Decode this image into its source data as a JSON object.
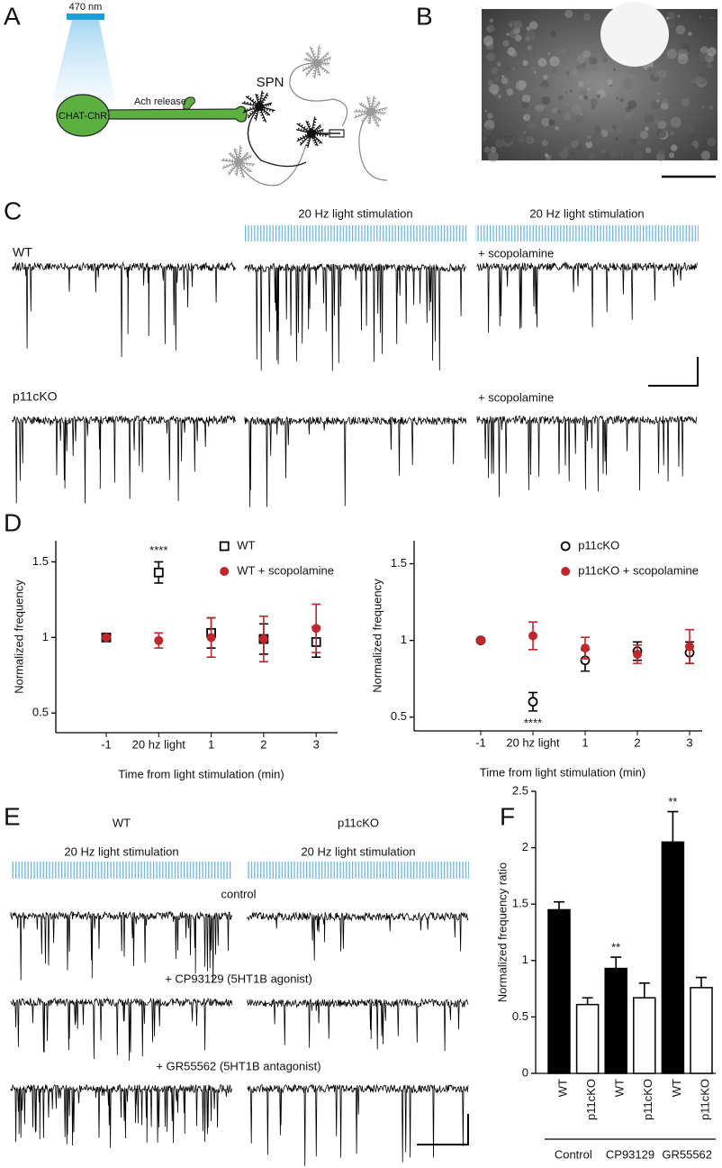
{
  "panel_labels": [
    "A",
    "B",
    "C",
    "D",
    "E",
    "F"
  ],
  "diagram": {
    "light": "470 nm",
    "cell": "CHAT-ChR",
    "release": "Ach release",
    "target": "SPN"
  },
  "panel_c": {
    "stimulus": "20 Hz light stimulation",
    "rows": [
      "WT",
      "p11cKO"
    ],
    "treatment": "+ scopolamine"
  },
  "panel_e": {
    "columns": [
      "WT",
      "p11cKO"
    ],
    "stimulus": "20 Hz light stimulation",
    "conditions": [
      "control",
      "+ CP93129 (5HT1B agonist)",
      "+ GR55562 (5HT1B antagonist)"
    ]
  },
  "chart_data": [
    {
      "type": "dot",
      "ylabel": "Normalized frequency",
      "xlabel": "Time from light stimulation (min)",
      "categories": [
        "-1",
        "20 hz light",
        "1",
        "2",
        "3"
      ],
      "ylim": [
        0.37,
        1.64
      ],
      "yticks": [
        0.5,
        1,
        1.5
      ],
      "legend": "upper right",
      "series": [
        {
          "name": "WT",
          "color": "#000000",
          "marker": "square-open",
          "values": [
            1,
            1.43,
            1.03,
            0.99,
            0.97
          ],
          "errors": [
            null,
            0.07,
            0.1,
            0.1,
            0.1
          ],
          "annotations": [
            null,
            "****",
            null,
            null,
            null
          ]
        },
        {
          "name": "WT + scopolamine",
          "color": "#c0272d",
          "marker": "circle",
          "values": [
            1,
            0.98,
            1.0,
            0.99,
            1.06
          ],
          "errors": [
            null,
            0.05,
            0.13,
            0.15,
            0.16
          ]
        }
      ]
    },
    {
      "type": "dot",
      "ylabel": "Normalized frequency",
      "xlabel": "Time from light stimulation (min)",
      "categories": [
        "-1",
        "20 hz light",
        "1",
        "2",
        "3"
      ],
      "ylim": [
        0.41,
        1.65
      ],
      "yticks": [
        0.5,
        1,
        1.5
      ],
      "legend": "upper right",
      "series": [
        {
          "name": "p11cKO",
          "color": "#000000",
          "marker": "circle-open",
          "values": [
            1,
            0.6,
            0.87,
            0.93,
            0.92
          ],
          "errors": [
            null,
            0.06,
            0.07,
            0.06,
            0.07
          ],
          "annotations": [
            null,
            "****",
            null,
            null,
            null
          ]
        },
        {
          "name": "p11cKO + scopolamine",
          "color": "#c0272d",
          "marker": "circle",
          "values": [
            1,
            1.03,
            0.95,
            0.91,
            0.96
          ],
          "errors": [
            null,
            0.09,
            0.07,
            0.06,
            0.11
          ]
        }
      ]
    },
    {
      "type": "bar",
      "ylabel": "Normalized frequency ratio",
      "categories": [
        "WT",
        "p11cKO",
        "WT",
        "p11cKO",
        "WT",
        "p11cKO"
      ],
      "groups": [
        "Control",
        "CP93129",
        "GR55562"
      ],
      "values": [
        1.45,
        0.61,
        0.93,
        0.67,
        2.05,
        0.76
      ],
      "errors": [
        0.07,
        0.06,
        0.1,
        0.13,
        0.27,
        0.09
      ],
      "colors": [
        "#000000",
        "#ffffff",
        "#000000",
        "#ffffff",
        "#000000",
        "#ffffff"
      ],
      "annotations": [
        null,
        null,
        "**",
        null,
        "**",
        null
      ],
      "ylim": [
        0,
        2.5
      ],
      "yticks": [
        0,
        0.5,
        1,
        1.5,
        2,
        2.5
      ]
    }
  ]
}
